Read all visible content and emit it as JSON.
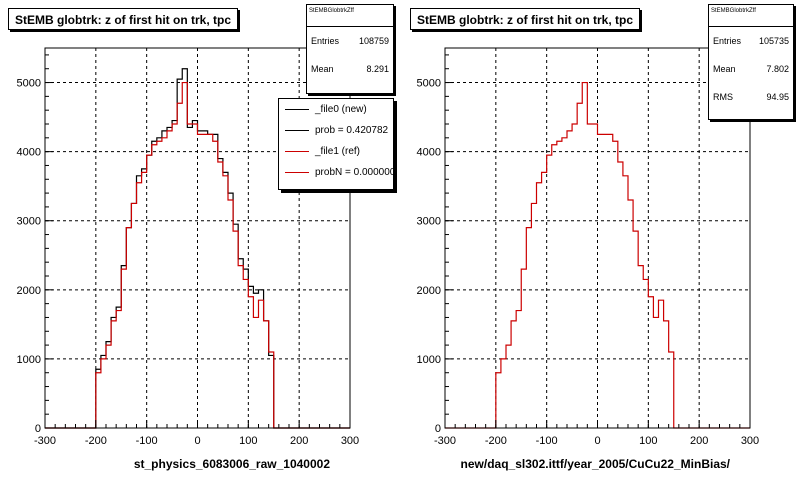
{
  "chart_data": [
    {
      "type": "histogram",
      "title": "StEMB globtrk: z of first hit on trk, tpc",
      "xlabel": "st_physics_6083006_raw_1040002",
      "ylabel": "",
      "xlim": [
        -300,
        300
      ],
      "ylim": [
        0,
        5500
      ],
      "x_ticks": [
        "-300",
        "-200",
        "-100",
        "0",
        "100",
        "200",
        "300"
      ],
      "y_ticks": [
        "0",
        "1000",
        "2000",
        "3000",
        "4000",
        "5000"
      ],
      "grid": true,
      "bin_edges_start": -200,
      "bin_width": 10,
      "series": [
        {
          "name": "_file0 (new)",
          "color": "#000000",
          "values": [
            850,
            1050,
            1250,
            1600,
            1750,
            2350,
            2900,
            3250,
            3650,
            3750,
            3950,
            4150,
            4200,
            4300,
            4350,
            4450,
            5050,
            5200,
            4350,
            4450,
            4300,
            4300,
            4250,
            4250,
            3900,
            3700,
            3400,
            2950,
            2450,
            2300,
            2050,
            1950,
            2000,
            1550,
            1050,
            0
          ]
        },
        {
          "name": "prob = 0.420782",
          "color": "#000000",
          "values": []
        },
        {
          "name": "_file1 (ref)",
          "color": "#cc0000",
          "values": [
            800,
            1000,
            1200,
            1550,
            1700,
            2300,
            2900,
            3250,
            3550,
            3700,
            3950,
            4100,
            4150,
            4200,
            4300,
            4400,
            4700,
            5000,
            4400,
            4400,
            4250,
            4250,
            4250,
            4150,
            3850,
            3650,
            3300,
            2850,
            2350,
            2150,
            1900,
            1600,
            1850,
            1550,
            1100,
            0
          ]
        },
        {
          "name": "probN = 0.000000",
          "color": "#cc0000",
          "values": []
        }
      ],
      "stats": {
        "name": "StEMBGlobtrkZff",
        "entries_label": "Entries",
        "entries": "108759",
        "mean_label": "Mean",
        "mean": "8.291"
      }
    },
    {
      "type": "histogram",
      "title": "StEMB globtrk: z of first hit on trk, tpc",
      "xlabel": "new/daq_sl302.ittf/year_2005/CuCu22_MinBias/",
      "ylabel": "",
      "xlim": [
        -300,
        300
      ],
      "ylim": [
        0,
        5500
      ],
      "x_ticks": [
        "-300",
        "-200",
        "-100",
        "0",
        "100",
        "200",
        "300"
      ],
      "y_ticks": [
        "0",
        "1000",
        "2000",
        "3000",
        "4000",
        "5000"
      ],
      "grid": true,
      "bin_edges_start": -200,
      "bin_width": 10,
      "series": [
        {
          "name": "",
          "color": "#cc0000",
          "values": [
            800,
            1000,
            1200,
            1550,
            1700,
            2300,
            2900,
            3250,
            3550,
            3700,
            3950,
            4100,
            4150,
            4200,
            4300,
            4400,
            4700,
            5000,
            4400,
            4400,
            4250,
            4250,
            4250,
            4150,
            3850,
            3650,
            3300,
            2850,
            2350,
            2150,
            1900,
            1600,
            1850,
            1550,
            1100,
            0
          ]
        }
      ],
      "stats": {
        "name": "StEMBGlobtrkZff",
        "entries_label": "Entries",
        "entries": "105735",
        "mean_label": "Mean",
        "mean": "7.802",
        "rms_label": "RMS",
        "rms": "94.95"
      }
    }
  ]
}
